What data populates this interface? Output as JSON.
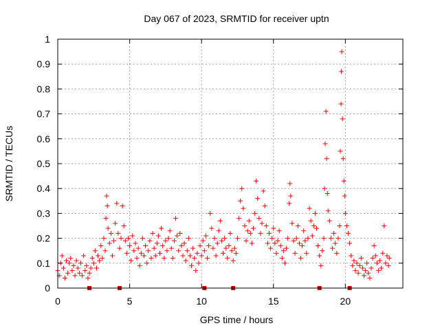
{
  "chart_data": {
    "type": "scatter",
    "title": "Day 067 of 2023, SRMTID for receiver uptn",
    "xlabel": "GPS time / hours",
    "ylabel": "SRMTID / TECUs",
    "xlim": [
      0,
      24
    ],
    "ylim": [
      0,
      1
    ],
    "grid": true,
    "marker": "+",
    "color": "#ff0000",
    "gap_marker_color": "#d40000",
    "x_ticks": [
      0,
      5,
      10,
      15,
      20
    ],
    "x_tick_labels": [
      "0",
      "5",
      "10",
      "15",
      "20"
    ],
    "y_ticks": [
      0,
      0.1,
      0.2,
      0.3,
      0.4,
      0.5,
      0.6,
      0.7,
      0.8,
      0.9,
      1
    ],
    "y_tick_labels": [
      "0",
      "0.1",
      "0.2",
      "0.3",
      "0.4",
      "0.5",
      "0.6",
      "0.7",
      "0.8",
      "0.9",
      "1"
    ],
    "gap_markers_x": [
      2.2,
      4.3,
      10.2,
      12.2,
      18.2,
      20.3
    ],
    "series": [
      {
        "name": "SRMTID",
        "points": [
          [
            0.0,
            0.07
          ],
          [
            0.1,
            0.05
          ],
          [
            0.2,
            0.1
          ],
          [
            0.3,
            0.13
          ],
          [
            0.4,
            0.08
          ],
          [
            0.5,
            0.04
          ],
          [
            0.6,
            0.11
          ],
          [
            0.7,
            0.06
          ],
          [
            0.8,
            0.1
          ],
          [
            0.9,
            0.12
          ],
          [
            1.0,
            0.07
          ],
          [
            1.1,
            0.09
          ],
          [
            1.2,
            0.05
          ],
          [
            1.3,
            0.11
          ],
          [
            1.4,
            0.08
          ],
          [
            1.5,
            0.06
          ],
          [
            1.6,
            0.1
          ],
          [
            1.7,
            0.05
          ],
          [
            1.8,
            0.13
          ],
          [
            1.9,
            0.07
          ],
          [
            2.0,
            0.09
          ],
          [
            2.1,
            0.04
          ],
          [
            2.2,
            0.06
          ],
          [
            2.3,
            0.08
          ],
          [
            2.4,
            0.12
          ],
          [
            2.5,
            0.1
          ],
          [
            2.6,
            0.15
          ],
          [
            2.7,
            0.08
          ],
          [
            2.8,
            0.13
          ],
          [
            2.9,
            0.11
          ],
          [
            3.0,
            0.17
          ],
          [
            3.1,
            0.12
          ],
          [
            3.2,
            0.2
          ],
          [
            3.3,
            0.15
          ],
          [
            3.35,
            0.28
          ],
          [
            3.4,
            0.37
          ],
          [
            3.45,
            0.33
          ],
          [
            3.5,
            0.24
          ],
          [
            3.6,
            0.18
          ],
          [
            3.7,
            0.22
          ],
          [
            3.8,
            0.13
          ],
          [
            3.9,
            0.19
          ],
          [
            4.0,
            0.26
          ],
          [
            4.1,
            0.34
          ],
          [
            4.2,
            0.22
          ],
          [
            4.3,
            0.16
          ],
          [
            4.4,
            0.2
          ],
          [
            4.5,
            0.33
          ],
          [
            4.6,
            0.25
          ],
          [
            4.7,
            0.19
          ],
          [
            4.8,
            0.14
          ],
          [
            4.9,
            0.2
          ],
          [
            5.0,
            0.17
          ],
          [
            5.1,
            0.11
          ],
          [
            5.2,
            0.21
          ],
          [
            5.3,
            0.15
          ],
          [
            5.4,
            0.18
          ],
          [
            5.5,
            0.12
          ],
          [
            5.6,
            0.16
          ],
          [
            5.7,
            0.09
          ],
          [
            5.8,
            0.14
          ],
          [
            5.9,
            0.2
          ],
          [
            6.0,
            0.13
          ],
          [
            6.1,
            0.17
          ],
          [
            6.2,
            0.1
          ],
          [
            6.3,
            0.15
          ],
          [
            6.4,
            0.19
          ],
          [
            6.5,
            0.12
          ],
          [
            6.6,
            0.22
          ],
          [
            6.7,
            0.16
          ],
          [
            6.8,
            0.13
          ],
          [
            6.9,
            0.18
          ],
          [
            7.0,
            0.21
          ],
          [
            7.1,
            0.14
          ],
          [
            7.2,
            0.24
          ],
          [
            7.3,
            0.17
          ],
          [
            7.4,
            0.12
          ],
          [
            7.5,
            0.19
          ],
          [
            7.6,
            0.15
          ],
          [
            7.7,
            0.2
          ],
          [
            7.8,
            0.23
          ],
          [
            7.9,
            0.16
          ],
          [
            8.0,
            0.12
          ],
          [
            8.1,
            0.19
          ],
          [
            8.2,
            0.28
          ],
          [
            8.3,
            0.21
          ],
          [
            8.4,
            0.15
          ],
          [
            8.5,
            0.22
          ],
          [
            8.6,
            0.17
          ],
          [
            8.7,
            0.13
          ],
          [
            8.8,
            0.18
          ],
          [
            8.9,
            0.11
          ],
          [
            9.0,
            0.15
          ],
          [
            9.1,
            0.2
          ],
          [
            9.2,
            0.13
          ],
          [
            9.3,
            0.09
          ],
          [
            9.4,
            0.16
          ],
          [
            9.5,
            0.12
          ],
          [
            9.6,
            0.07
          ],
          [
            9.7,
            0.14
          ],
          [
            9.8,
            0.1
          ],
          [
            9.9,
            0.17
          ],
          [
            10.0,
            0.13
          ],
          [
            10.1,
            0.19
          ],
          [
            10.2,
            0.15
          ],
          [
            10.3,
            0.21
          ],
          [
            10.4,
            0.12
          ],
          [
            10.5,
            0.17
          ],
          [
            10.6,
            0.3
          ],
          [
            10.7,
            0.24
          ],
          [
            10.8,
            0.16
          ],
          [
            10.9,
            0.2
          ],
          [
            11.0,
            0.13
          ],
          [
            11.1,
            0.18
          ],
          [
            11.2,
            0.23
          ],
          [
            11.3,
            0.27
          ],
          [
            11.4,
            0.19
          ],
          [
            11.5,
            0.14
          ],
          [
            11.6,
            0.2
          ],
          [
            11.7,
            0.16
          ],
          [
            11.8,
            0.12
          ],
          [
            11.9,
            0.17
          ],
          [
            12.0,
            0.22
          ],
          [
            12.1,
            0.15
          ],
          [
            12.2,
            0.11
          ],
          [
            12.3,
            0.16
          ],
          [
            12.4,
            0.14
          ],
          [
            12.5,
            0.2
          ],
          [
            12.6,
            0.28
          ],
          [
            12.7,
            0.35
          ],
          [
            12.8,
            0.4
          ],
          [
            12.9,
            0.32
          ],
          [
            13.0,
            0.25
          ],
          [
            13.1,
            0.19
          ],
          [
            13.2,
            0.23
          ],
          [
            13.3,
            0.27
          ],
          [
            13.4,
            0.22
          ],
          [
            13.5,
            0.18
          ],
          [
            13.6,
            0.24
          ],
          [
            13.7,
            0.3
          ],
          [
            13.8,
            0.43
          ],
          [
            13.9,
            0.36
          ],
          [
            14.0,
            0.28
          ],
          [
            14.1,
            0.22
          ],
          [
            14.2,
            0.26
          ],
          [
            14.3,
            0.39
          ],
          [
            14.4,
            0.33
          ],
          [
            14.5,
            0.25
          ],
          [
            14.6,
            0.18
          ],
          [
            14.7,
            0.22
          ],
          [
            14.8,
            0.16
          ],
          [
            14.9,
            0.2
          ],
          [
            15.0,
            0.24
          ],
          [
            15.1,
            0.18
          ],
          [
            15.2,
            0.14
          ],
          [
            15.3,
            0.19
          ],
          [
            15.4,
            0.23
          ],
          [
            15.5,
            0.17
          ],
          [
            15.6,
            0.12
          ],
          [
            15.7,
            0.15
          ],
          [
            15.8,
            0.1
          ],
          [
            15.9,
            0.16
          ],
          [
            16.0,
            0.2
          ],
          [
            16.1,
            0.34
          ],
          [
            16.15,
            0.42
          ],
          [
            16.2,
            0.37
          ],
          [
            16.3,
            0.26
          ],
          [
            16.4,
            0.19
          ],
          [
            16.5,
            0.14
          ],
          [
            16.6,
            0.2
          ],
          [
            16.7,
            0.25
          ],
          [
            16.8,
            0.18
          ],
          [
            16.9,
            0.12
          ],
          [
            17.0,
            0.17
          ],
          [
            17.1,
            0.23
          ],
          [
            17.2,
            0.19
          ],
          [
            17.3,
            0.14
          ],
          [
            17.4,
            0.2
          ],
          [
            17.5,
            0.32
          ],
          [
            17.6,
            0.27
          ],
          [
            17.7,
            0.21
          ],
          [
            17.8,
            0.25
          ],
          [
            17.9,
            0.3
          ],
          [
            18.0,
            0.24
          ],
          [
            18.1,
            0.17
          ],
          [
            18.2,
            0.13
          ],
          [
            18.3,
            0.09
          ],
          [
            18.4,
            0.15
          ],
          [
            18.5,
            0.2
          ],
          [
            18.55,
            0.4
          ],
          [
            18.6,
            0.58
          ],
          [
            18.65,
            0.71
          ],
          [
            18.7,
            0.52
          ],
          [
            18.75,
            0.38
          ],
          [
            18.8,
            0.31
          ],
          [
            18.9,
            0.27
          ],
          [
            19.0,
            0.2
          ],
          [
            19.1,
            0.16
          ],
          [
            19.2,
            0.22
          ],
          [
            19.3,
            0.18
          ],
          [
            19.4,
            0.14
          ],
          [
            19.5,
            0.2
          ],
          [
            19.6,
            0.25
          ],
          [
            19.65,
            0.55
          ],
          [
            19.7,
            0.74
          ],
          [
            19.72,
            0.87
          ],
          [
            19.75,
            0.95
          ],
          [
            19.8,
            0.68
          ],
          [
            19.85,
            0.52
          ],
          [
            19.9,
            0.43
          ],
          [
            19.95,
            0.37
          ],
          [
            20.0,
            0.3
          ],
          [
            20.1,
            0.25
          ],
          [
            20.2,
            0.22
          ],
          [
            20.3,
            0.18
          ],
          [
            20.4,
            0.13
          ],
          [
            20.5,
            0.09
          ],
          [
            20.6,
            0.11
          ],
          [
            20.7,
            0.07
          ],
          [
            20.8,
            0.1
          ],
          [
            20.9,
            0.06
          ],
          [
            21.0,
            0.09
          ],
          [
            21.1,
            0.12
          ],
          [
            21.2,
            0.08
          ],
          [
            21.3,
            0.05
          ],
          [
            21.4,
            0.07
          ],
          [
            21.5,
            0.1
          ],
          [
            21.6,
            0.06
          ],
          [
            21.7,
            0.04
          ],
          [
            21.8,
            0.08
          ],
          [
            21.9,
            0.12
          ],
          [
            22.0,
            0.17
          ],
          [
            22.1,
            0.13
          ],
          [
            22.2,
            0.1
          ],
          [
            22.3,
            0.07
          ],
          [
            22.4,
            0.11
          ],
          [
            22.5,
            0.08
          ],
          [
            22.6,
            0.14
          ],
          [
            22.7,
            0.25
          ],
          [
            22.8,
            0.1
          ],
          [
            22.9,
            0.13
          ],
          [
            23.0,
            0.09
          ],
          [
            23.05,
            0.12
          ]
        ]
      }
    ]
  }
}
